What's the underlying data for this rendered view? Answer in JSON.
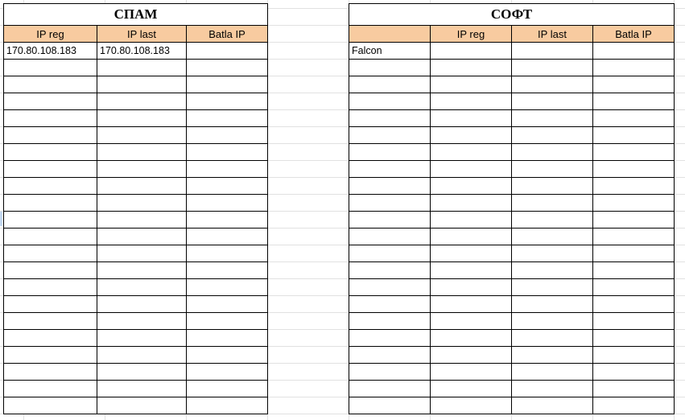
{
  "spam": {
    "title": "СПАМ",
    "headers": [
      "IP reg",
      "IP last",
      "Batla IP"
    ],
    "rows": [
      [
        "170.80.108.183",
        "170.80.108.183",
        ""
      ],
      [
        "",
        "",
        ""
      ],
      [
        "",
        "",
        ""
      ],
      [
        "",
        "",
        ""
      ],
      [
        "",
        "",
        ""
      ],
      [
        "",
        "",
        ""
      ],
      [
        "",
        "",
        ""
      ],
      [
        "",
        "",
        ""
      ],
      [
        "",
        "",
        ""
      ],
      [
        "",
        "",
        ""
      ],
      [
        "",
        "",
        ""
      ],
      [
        "",
        "",
        ""
      ],
      [
        "",
        "",
        ""
      ],
      [
        "",
        "",
        ""
      ],
      [
        "",
        "",
        ""
      ],
      [
        "",
        "",
        ""
      ],
      [
        "",
        "",
        ""
      ],
      [
        "",
        "",
        ""
      ],
      [
        "",
        "",
        ""
      ],
      [
        "",
        "",
        ""
      ],
      [
        "",
        "",
        ""
      ],
      [
        "",
        "",
        ""
      ]
    ]
  },
  "soft": {
    "title": "СОФТ",
    "headers": [
      "",
      "IP reg",
      "IP last",
      "Batla IP"
    ],
    "rows": [
      [
        "Falcon",
        "",
        "",
        ""
      ],
      [
        "",
        "",
        "",
        ""
      ],
      [
        "",
        "",
        "",
        ""
      ],
      [
        "",
        "",
        "",
        ""
      ],
      [
        "",
        "",
        "",
        ""
      ],
      [
        "",
        "",
        "",
        ""
      ],
      [
        "",
        "",
        "",
        ""
      ],
      [
        "",
        "",
        "",
        ""
      ],
      [
        "",
        "",
        "",
        ""
      ],
      [
        "",
        "",
        "",
        ""
      ],
      [
        "",
        "",
        "",
        ""
      ],
      [
        "",
        "",
        "",
        ""
      ],
      [
        "",
        "",
        "",
        ""
      ],
      [
        "",
        "",
        "",
        ""
      ],
      [
        "",
        "",
        "",
        ""
      ],
      [
        "",
        "",
        "",
        ""
      ],
      [
        "",
        "",
        "",
        ""
      ],
      [
        "",
        "",
        "",
        ""
      ],
      [
        "",
        "",
        "",
        ""
      ],
      [
        "",
        "",
        "",
        ""
      ],
      [
        "",
        "",
        "",
        ""
      ],
      [
        "",
        "",
        "",
        ""
      ]
    ]
  },
  "colors": {
    "header_fill": "#f8cba0",
    "gridline": "#e1e1e1"
  }
}
